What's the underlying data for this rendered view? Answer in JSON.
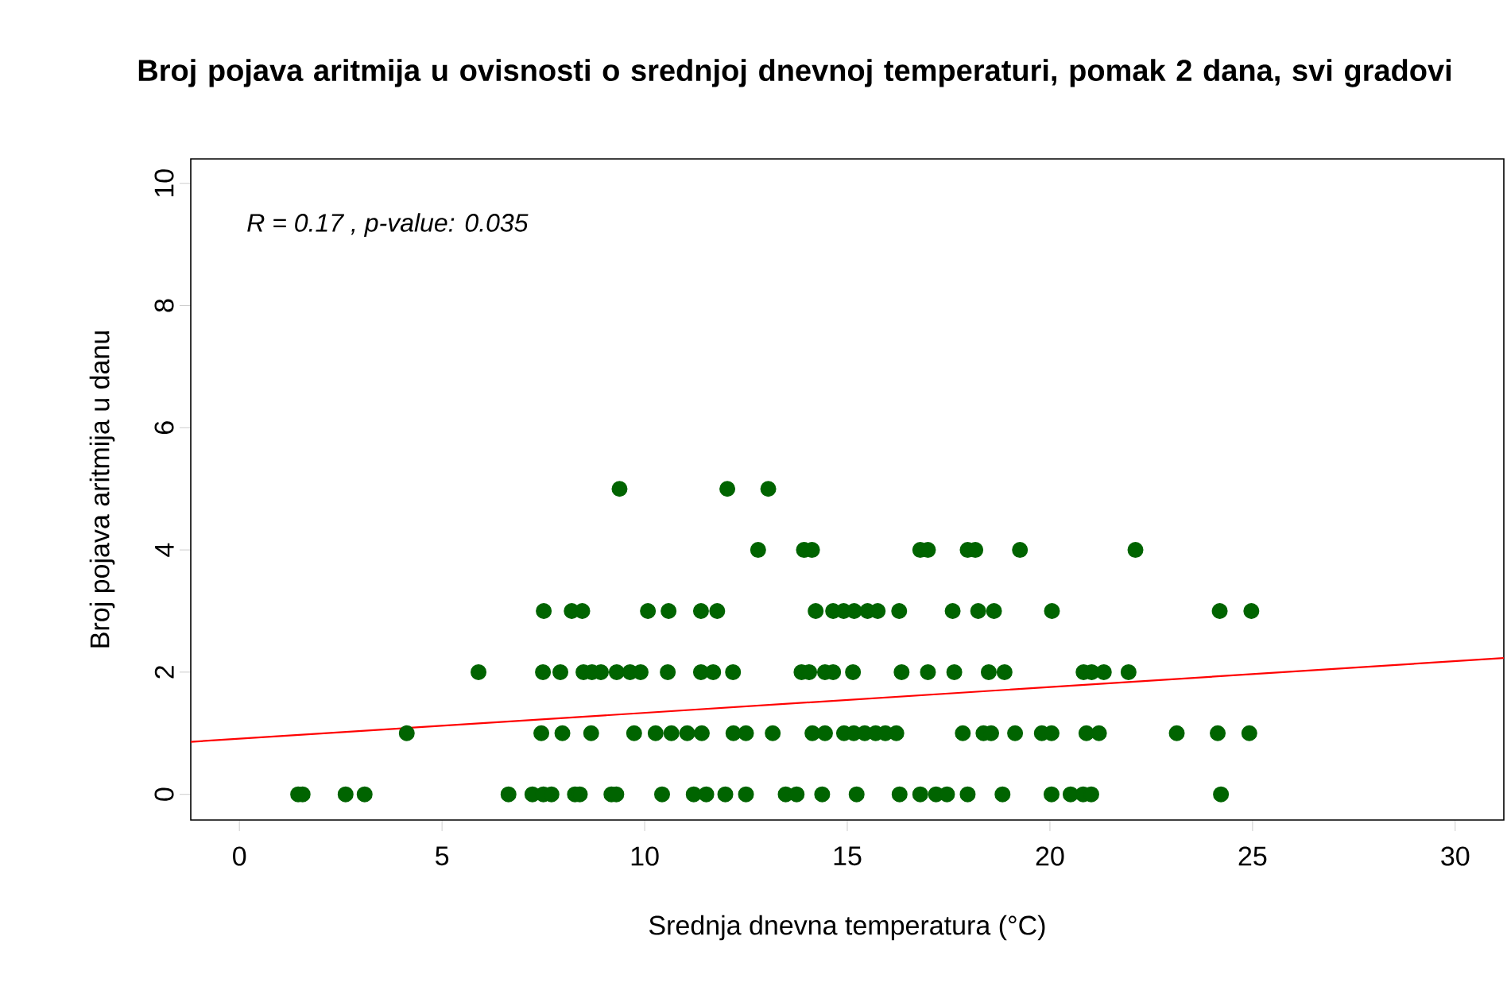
{
  "chart_data": {
    "type": "scatter",
    "title": "Broj pojava aritmija u ovisnosti o srednjoj dnevnoj temperaturi, pomak 2 dana, svi gradovi",
    "xlabel": "Srednja dnevna temperatura (°C)",
    "ylabel": "Broj pojava aritmija u danu",
    "annotations": [
      "R = 0.17 , p-value: 0.035"
    ],
    "xlim": [
      -1.2,
      31.2
    ],
    "ylim": [
      -0.42,
      10.4
    ],
    "xticks": [
      0,
      5,
      10,
      15,
      20,
      25,
      30
    ],
    "yticks": [
      0,
      2,
      4,
      6,
      8,
      10
    ],
    "series": [
      {
        "color": "#006400",
        "marker": "circle",
        "x": [
          1.45,
          1.56,
          2.62,
          3.09,
          6.64,
          7.23,
          7.5,
          7.7,
          8.28,
          8.4,
          9.18,
          9.3,
          10.43,
          11.21,
          11.52,
          11.99,
          12.5,
          13.48,
          13.75,
          14.38,
          15.23,
          16.29,
          16.8,
          17.19,
          17.46,
          17.97,
          18.83,
          20.04,
          20.51,
          20.82,
          21.02,
          24.22,
          4.13,
          7.45,
          7.97,
          8.68,
          9.74,
          10.27,
          10.66,
          11.05,
          11.41,
          12.19,
          12.5,
          13.16,
          14.14,
          14.45,
          14.92,
          15.16,
          15.43,
          15.7,
          15.94,
          16.21,
          17.85,
          18.36,
          18.55,
          19.14,
          19.8,
          20.04,
          20.9,
          21.21,
          23.13,
          24.14,
          24.92,
          5.9,
          7.49,
          7.92,
          8.49,
          8.7,
          8.92,
          9.31,
          9.64,
          9.9,
          10.57,
          11.39,
          11.69,
          12.18,
          13.87,
          14.06,
          14.45,
          14.65,
          15.14,
          16.34,
          16.99,
          17.64,
          18.49,
          18.88,
          20.83,
          21.03,
          21.33,
          21.94,
          7.51,
          8.2,
          8.46,
          10.08,
          10.59,
          11.39,
          11.79,
          14.22,
          14.65,
          14.91,
          15.17,
          15.5,
          15.75,
          16.28,
          17.6,
          18.23,
          18.62,
          20.05,
          24.19,
          24.97,
          12.8,
          13.93,
          14.13,
          16.8,
          16.99,
          17.97,
          18.16,
          19.26,
          22.11,
          9.38,
          12.04,
          13.05
        ],
        "values": [
          0,
          0,
          0,
          0,
          0,
          0,
          0,
          0,
          0,
          0,
          0,
          0,
          0,
          0,
          0,
          0,
          0,
          0,
          0,
          0,
          0,
          0,
          0,
          0,
          0,
          0,
          0,
          0,
          0,
          0,
          0,
          0,
          1,
          1,
          1,
          1,
          1,
          1,
          1,
          1,
          1,
          1,
          1,
          1,
          1,
          1,
          1,
          1,
          1,
          1,
          1,
          1,
          1,
          1,
          1,
          1,
          1,
          1,
          1,
          1,
          1,
          1,
          1,
          2,
          2,
          2,
          2,
          2,
          2,
          2,
          2,
          2,
          2,
          2,
          2,
          2,
          2,
          2,
          2,
          2,
          2,
          2,
          2,
          2,
          2,
          2,
          2,
          2,
          2,
          2,
          3,
          3,
          3,
          3,
          3,
          3,
          3,
          3,
          3,
          3,
          3,
          3,
          3,
          3,
          3,
          3,
          3,
          3,
          3,
          3,
          4,
          4,
          4,
          4,
          4,
          4,
          4,
          4,
          4,
          5,
          5,
          5
        ]
      },
      {
        "type": "line",
        "color": "#ff0000",
        "marker": "none",
        "x": [
          -1.2,
          31.2
        ],
        "values": [
          0.86,
          2.23
        ]
      }
    ]
  }
}
